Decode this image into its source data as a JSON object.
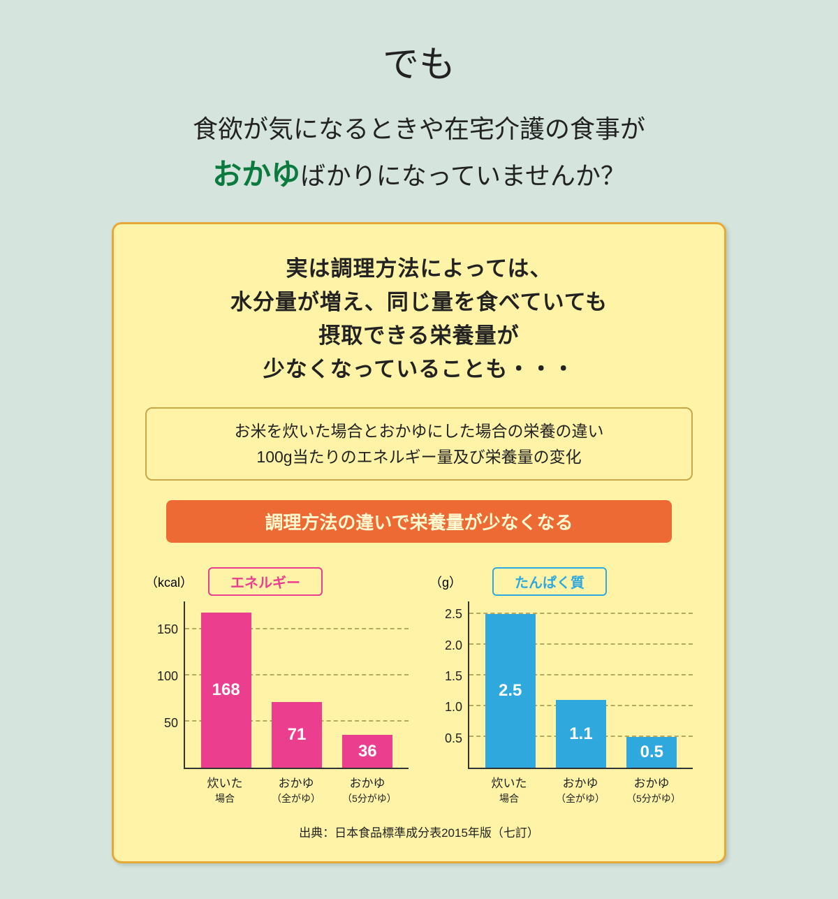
{
  "colors": {
    "page_bg": "#d5e5de",
    "text_main": "#222222",
    "emph_green": "#0a7a3f",
    "card_bg": "#fff3a8",
    "card_border": "#e8a838",
    "subtitle_border": "#c8a848",
    "banner_bg": "#ee6a35",
    "banner_text": "#fffad0",
    "grid_dash": "#b8a860",
    "axis": "#333333"
  },
  "heading": {
    "top": "でも",
    "sub_line1": "食欲が気になるときや在宅介護の食事が",
    "sub_emph": "おかゆ",
    "sub_line2_rest": "ばかりになっていませんか？"
  },
  "card": {
    "heading": "実は調理方法によっては、\n水分量が増え、同じ量を食べていても\n摂取できる栄養量が\n少なくなっていることも・・・",
    "subtitle": "お米を炊いた場合とおかゆにした場合の栄養の違い\n100g当たりのエネルギー量及び栄養量の変化",
    "banner": "調理方法の違いで栄養量が少なくなる"
  },
  "charts": {
    "x_categories": [
      {
        "main": "炊いた",
        "sub": "場合"
      },
      {
        "main": "おかゆ",
        "sub": "（全がゆ）"
      },
      {
        "main": "おかゆ",
        "sub": "（5分がゆ）"
      }
    ],
    "energy": {
      "title": "エネルギー",
      "unit": "（kcal）",
      "bar_color": "#ec3e8f",
      "title_border": "#ec3e8f",
      "ymax": 180,
      "yticks": [
        50,
        100,
        150
      ],
      "values": [
        168,
        71,
        36
      ],
      "value_labels": [
        "168",
        "71",
        "36"
      ]
    },
    "protein": {
      "title": "たんぱく質",
      "unit": "（g）",
      "bar_color": "#2fa9dd",
      "title_border": "#2fa9dd",
      "ymax": 2.7,
      "yticks": [
        0.5,
        1.0,
        1.5,
        2.0,
        2.5
      ],
      "ytick_labels": [
        "0.5",
        "1.0",
        "1.5",
        "2.0",
        "2.5"
      ],
      "values": [
        2.5,
        1.1,
        0.5
      ],
      "value_labels": [
        "2.5",
        "1.1",
        "0.5"
      ]
    }
  },
  "citation": "出典：日本食品標準成分表2015年版（七訂）"
}
